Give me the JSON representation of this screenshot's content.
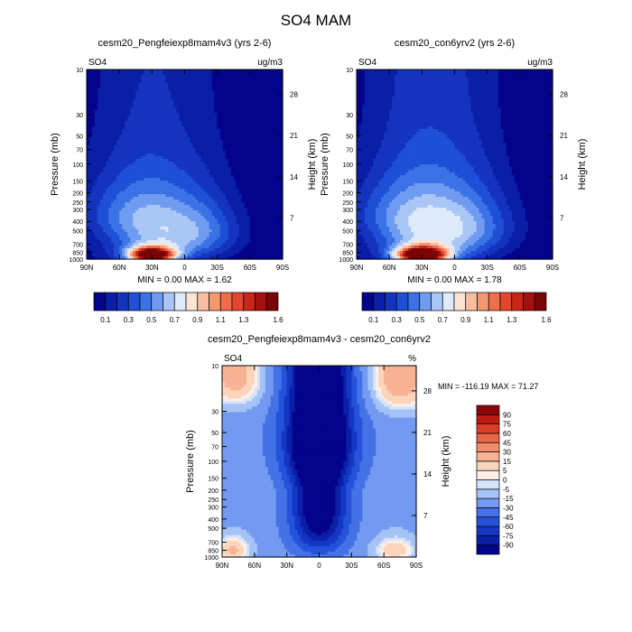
{
  "page_title": "SO4 MAM",
  "chart_data": [
    {
      "type": "contour",
      "title": "cesm20_Pengfeiexp8mam4v3 (yrs 2-6)",
      "left_label": "SO4",
      "right_label": "ug/m3",
      "ylabel": "Pressure (mb)",
      "ylabel_right": "Height (km)",
      "x_ticks": [
        "90N",
        "60N",
        "30N",
        "0",
        "30S",
        "60S",
        "90S"
      ],
      "x_values": [
        90,
        60,
        30,
        0,
        -30,
        -60,
        -90
      ],
      "y_ticks": [
        "10",
        "30",
        "50",
        "70",
        "100",
        "150",
        "200",
        "250",
        "300",
        "400",
        "500",
        "700",
        "850",
        "1000"
      ],
      "y_values": [
        10,
        30,
        50,
        70,
        100,
        150,
        200,
        250,
        300,
        400,
        500,
        700,
        850,
        1000
      ],
      "ylim": [
        1000,
        10
      ],
      "y_scale": "log",
      "height_ticks": [
        "7",
        "14",
        "21",
        "28"
      ],
      "height_values": [
        7,
        14,
        21,
        28
      ],
      "stats_text": "MIN =   0.00   MAX =   1.62",
      "min": 0.0,
      "max": 1.62,
      "colorbar": {
        "levels": [
          0.1,
          0.2,
          0.3,
          0.4,
          0.5,
          0.6,
          0.7,
          0.8,
          0.9,
          1.0,
          1.1,
          1.2,
          1.3,
          1.4,
          1.5,
          1.6
        ],
        "labels": [
          "0.1",
          "0.3",
          "0.5",
          "0.7",
          "0.9",
          "1.1",
          "1.3",
          "1.6"
        ],
        "colors": [
          "#04048a",
          "#0a1ea8",
          "#1434c0",
          "#1f4fd6",
          "#3b72e6",
          "#6f9cf0",
          "#a9c6f6",
          "#ddeafb",
          "#fde3d3",
          "#f9bea0",
          "#f49872",
          "#ee6e4c",
          "#e4462f",
          "#c92518",
          "#a50f0d",
          "#7a0505"
        ],
        "orientation": "horizontal"
      },
      "field": {
        "background_level": 0,
        "blobs": [
          {
            "lat": 30,
            "pressure": 900,
            "peak": 1.62,
            "lat_width": 14,
            "p_width": 110
          },
          {
            "lat": 25,
            "pressure": 650,
            "peak": 0.55,
            "lat_width": 34,
            "p_width": 380
          },
          {
            "lat": 50,
            "pressure": 300,
            "peak": 0.28,
            "lat_width": 38,
            "p_width": 180
          },
          {
            "lat": -20,
            "pressure": 500,
            "peak": 0.3,
            "lat_width": 25,
            "p_width": 250
          }
        ]
      }
    },
    {
      "type": "contour",
      "title": "cesm20_con6yrv2 (yrs 2-6)",
      "left_label": "SO4",
      "right_label": "ug/m3",
      "ylabel": "Pressure (mb)",
      "ylabel_right": "Height (km)",
      "x_ticks": [
        "90N",
        "60N",
        "30N",
        "0",
        "30S",
        "60S",
        "90S"
      ],
      "x_values": [
        90,
        60,
        30,
        0,
        -30,
        -60,
        -90
      ],
      "y_ticks": [
        "10",
        "30",
        "50",
        "70",
        "100",
        "150",
        "200",
        "250",
        "300",
        "400",
        "500",
        "700",
        "850",
        "1000"
      ],
      "y_values": [
        10,
        30,
        50,
        70,
        100,
        150,
        200,
        250,
        300,
        400,
        500,
        700,
        850,
        1000
      ],
      "ylim": [
        1000,
        10
      ],
      "y_scale": "log",
      "height_ticks": [
        "7",
        "14",
        "21",
        "28"
      ],
      "height_values": [
        7,
        14,
        21,
        28
      ],
      "stats_text": "MIN =   0.00   MAX =   1.78",
      "min": 0.0,
      "max": 1.78,
      "colorbar": {
        "levels": [
          0.1,
          0.2,
          0.3,
          0.4,
          0.5,
          0.6,
          0.7,
          0.8,
          0.9,
          1.0,
          1.1,
          1.2,
          1.3,
          1.4,
          1.5,
          1.6
        ],
        "labels": [
          "0.1",
          "0.3",
          "0.5",
          "0.7",
          "0.9",
          "1.1",
          "1.3",
          "1.6"
        ],
        "colors": [
          "#04048a",
          "#0a1ea8",
          "#1434c0",
          "#1f4fd6",
          "#3b72e6",
          "#6f9cf0",
          "#a9c6f6",
          "#ddeafb",
          "#fde3d3",
          "#f9bea0",
          "#f49872",
          "#ee6e4c",
          "#e4462f",
          "#c92518",
          "#a50f0d",
          "#7a0505"
        ],
        "orientation": "horizontal"
      },
      "field": {
        "background_level": 0,
        "blobs": [
          {
            "lat": 30,
            "pressure": 900,
            "peak": 1.78,
            "lat_width": 15,
            "p_width": 115
          },
          {
            "lat": 25,
            "pressure": 650,
            "peak": 0.6,
            "lat_width": 36,
            "p_width": 400
          },
          {
            "lat": 45,
            "pressure": 300,
            "peak": 0.28,
            "lat_width": 40,
            "p_width": 180
          },
          {
            "lat": -20,
            "pressure": 450,
            "peak": 0.3,
            "lat_width": 28,
            "p_width": 260
          }
        ]
      }
    },
    {
      "type": "contour",
      "title": "cesm20_Pengfeiexp8mam4v3 - cesm20_con6yrv2",
      "left_label": "SO4",
      "right_label": "%",
      "ylabel": "Pressure (mb)",
      "ylabel_right": "Height (km)",
      "x_ticks": [
        "90N",
        "60N",
        "30N",
        "0",
        "30S",
        "60S",
        "90S"
      ],
      "x_values": [
        90,
        60,
        30,
        0,
        -30,
        -60,
        -90
      ],
      "y_ticks": [
        "10",
        "30",
        "50",
        "70",
        "100",
        "150",
        "200",
        "250",
        "300",
        "400",
        "500",
        "700",
        "850",
        "1000"
      ],
      "y_values": [
        10,
        30,
        50,
        70,
        100,
        150,
        200,
        250,
        300,
        400,
        500,
        700,
        850,
        1000
      ],
      "ylim": [
        1000,
        10
      ],
      "y_scale": "log",
      "height_ticks": [
        "7",
        "14",
        "21",
        "28"
      ],
      "height_values": [
        7,
        14,
        21,
        28
      ],
      "stats_text": "MIN = -116.19  MAX =  71.27",
      "min": -116.19,
      "max": 71.27,
      "colorbar": {
        "levels": [
          -90,
          -75,
          -60,
          -45,
          -30,
          -15,
          -5,
          0,
          5,
          15,
          30,
          45,
          60,
          75,
          90
        ],
        "labels": [
          "-90",
          "-75",
          "-60",
          "-45",
          "-30",
          "-15",
          "-5",
          "0",
          "5",
          "15",
          "30",
          "45",
          "60",
          "75",
          "90"
        ],
        "colors": [
          "#04048a",
          "#0b1fa8",
          "#1537c4",
          "#2452db",
          "#4472e6",
          "#739af0",
          "#a5c3f6",
          "#d5e4fa",
          "#fdf0e6",
          "#fbd4bc",
          "#f7b293",
          "#f28d6c",
          "#ea6647",
          "#dc3e28",
          "#bd1a12",
          "#8c0606"
        ],
        "orientation": "vertical"
      },
      "field": {
        "background_level": -22,
        "blobs": [
          {
            "lat": 0,
            "pressure": 250,
            "peak": -95,
            "lat_width": 18,
            "p_width": 400
          },
          {
            "lat": 0,
            "pressure": 60,
            "peak": -60,
            "lat_width": 25,
            "p_width": 60
          },
          {
            "lat": 78,
            "pressure": 12,
            "peak": 45,
            "lat_width": 20,
            "p_width": 10
          },
          {
            "lat": -75,
            "pressure": 12,
            "peak": 50,
            "lat_width": 22,
            "p_width": 12
          },
          {
            "lat": 80,
            "pressure": 850,
            "peak": 40,
            "lat_width": 12,
            "p_width": 200
          },
          {
            "lat": -70,
            "pressure": 850,
            "peak": 35,
            "lat_width": 15,
            "p_width": 200
          }
        ]
      }
    }
  ]
}
